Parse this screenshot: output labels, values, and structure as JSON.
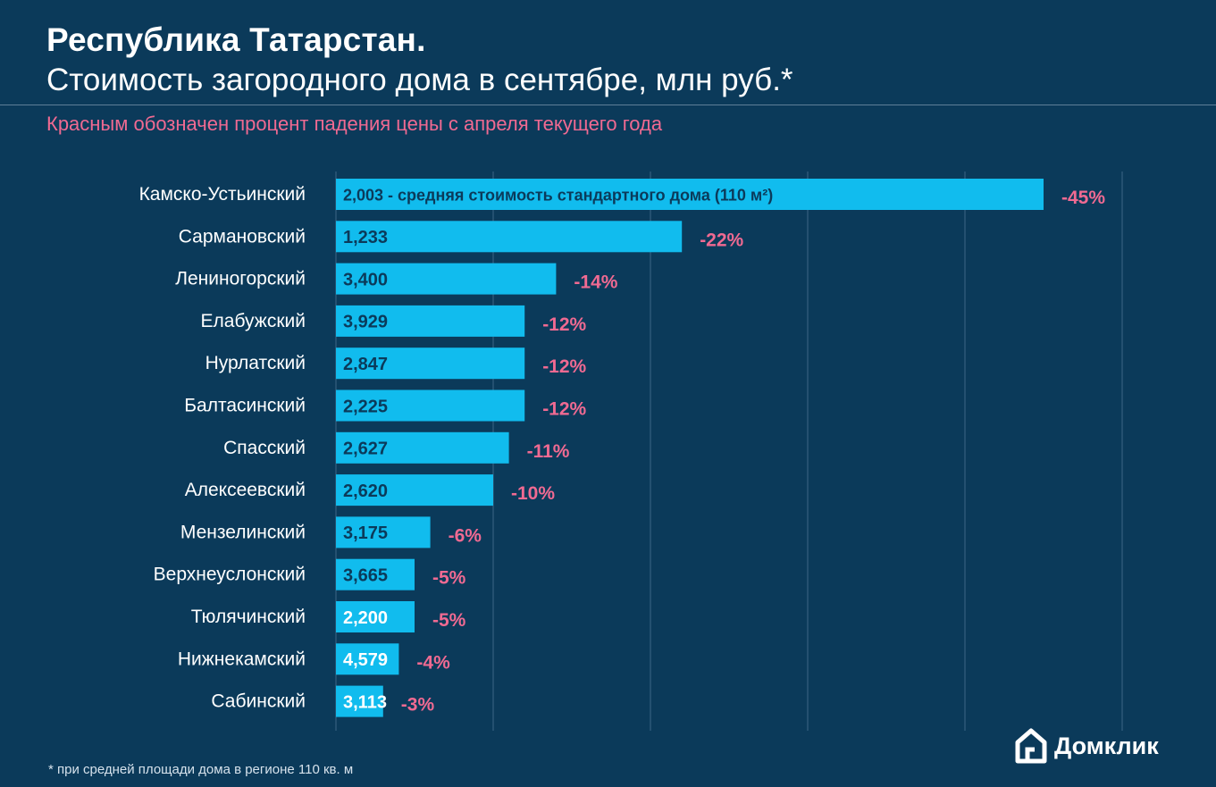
{
  "header": {
    "title": "Республика Татарстан.",
    "subtitle": "Стоимость загородного дома в сентябре, млн руб.*",
    "note": "Красным обозначен процент падения цены с апреля текущего года"
  },
  "footer": {
    "footnote": "* при средней площади дома в регионе 110 кв. м",
    "brand": "Домклик"
  },
  "colors": {
    "background": "#0b3a5a",
    "bar": "#11bcee",
    "drop_label": "#f06a92",
    "value_label": "#0b3a5a",
    "grid": "#3e6786"
  },
  "chart_data": {
    "type": "bar",
    "orientation": "horizontal",
    "title": "Республика Татарстан. Стоимость загородного дома в сентябре, млн руб.*",
    "bar_length_measure": "percent price drop since April",
    "categories": [
      "Камско-Устьинский",
      "Сармановский",
      "Лениногорский",
      "Елабужский",
      "Нурлатский",
      "Балтасинский",
      "Спасский",
      "Алексеевский",
      "Мензелинский",
      "Верхнеуслонский",
      "Тюлячинский",
      "Нижнекамский",
      "Сабинский"
    ],
    "values": [
      45,
      22,
      14,
      12,
      12,
      12,
      11,
      10,
      6,
      5,
      5,
      4,
      3
    ],
    "drop_labels": [
      "-45%",
      "-22%",
      "-14%",
      "-12%",
      "-12%",
      "-12%",
      "-11%",
      "-10%",
      "-6%",
      "-5%",
      "-5%",
      "-4%",
      "-3%"
    ],
    "price_labels": [
      "2,003 - средняя стоимость стандартного дома (110 м²)",
      "1,233",
      "3,400",
      "3,929",
      "2,847",
      "2,225",
      "2,627",
      "2,620",
      "3,175",
      "3,665",
      "2,200",
      "4,579",
      "3,113"
    ],
    "xlim": [
      0,
      50
    ],
    "grid": "vertical"
  }
}
